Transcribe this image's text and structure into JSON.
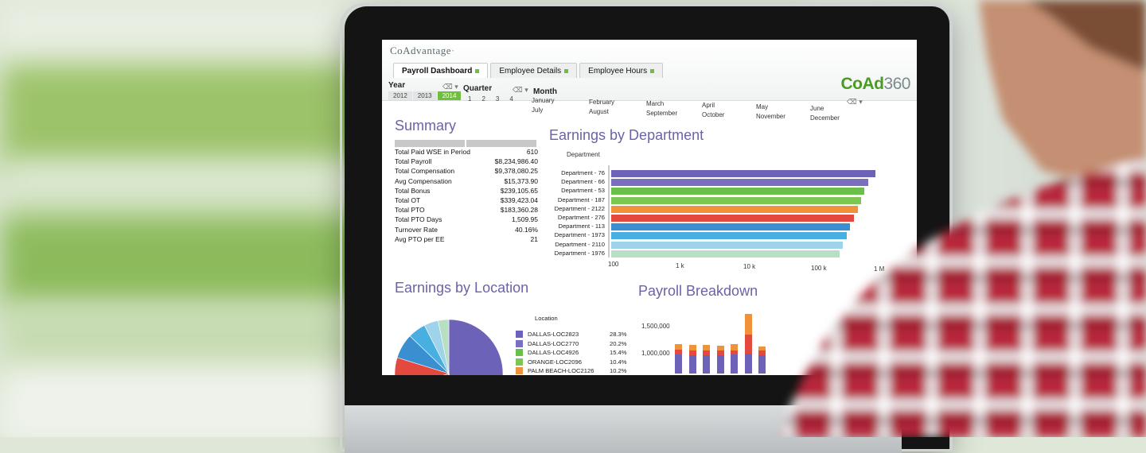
{
  "app": {
    "logo_text": "CoAdvantage",
    "brand_main": "CoAd",
    "brand_num": "360"
  },
  "tabs": [
    {
      "label": "Payroll Dashboard",
      "active": true
    },
    {
      "label": "Employee Details",
      "active": false
    },
    {
      "label": "Employee Hours",
      "active": false
    }
  ],
  "filters": {
    "year": {
      "title": "Year",
      "options": [
        "2012",
        "2013",
        "2014"
      ],
      "selected": "2014"
    },
    "quarter": {
      "title": "Quarter",
      "options": [
        "1",
        "2",
        "3",
        "4"
      ]
    },
    "month": {
      "title": "Month",
      "options": [
        "January",
        "February",
        "March",
        "April",
        "May",
        "June",
        "July",
        "August",
        "September",
        "October",
        "November",
        "December"
      ]
    }
  },
  "summary": {
    "title": "Summary",
    "rows": [
      {
        "label": "Total Paid WSE in Period",
        "value": "610"
      },
      {
        "label": "Total Payroll",
        "value": "$8,234,986.40"
      },
      {
        "label": "Total Compensation",
        "value": "$9,378,080.25"
      },
      {
        "label": "Avg Compensation",
        "value": "$15,373.90"
      },
      {
        "label": "Total Bonus",
        "value": "$239,105.65"
      },
      {
        "label": "Total OT",
        "value": "$339,423.04"
      },
      {
        "label": "Total PTO",
        "value": "$183,360.28"
      },
      {
        "label": "Total PTO Days",
        "value": "1,509.95"
      },
      {
        "label": "Turnover Rate",
        "value": "40.16%"
      },
      {
        "label": "Avg PTO per EE",
        "value": "21"
      }
    ]
  },
  "chart_data": [
    {
      "type": "bar",
      "orientation": "horizontal",
      "title": "Earnings by Department",
      "ylabel": "Department",
      "xscale": "log",
      "xticks": [
        "100",
        "1 k",
        "10 k",
        "100 k",
        "1 M"
      ],
      "xlim": [
        100,
        1000000
      ],
      "categories": [
        "Department - 76",
        "Department - 66",
        "Department - 53",
        "Department - 187",
        "Department - 2122",
        "Department - 276",
        "Department - 113",
        "Department - 1973",
        "Department - 2110",
        "Department - 1976"
      ],
      "values": [
        800000,
        650000,
        600000,
        560000,
        520000,
        480000,
        430000,
        400000,
        370000,
        340000
      ],
      "colors": [
        "#6c63b8",
        "#7a6fbf",
        "#6abf4b",
        "#7cc653",
        "#f0923a",
        "#e4493f",
        "#3a8fd0",
        "#49aee0",
        "#9fd3ea",
        "#b8dfc4"
      ]
    },
    {
      "type": "pie",
      "title": "Earnings by Location",
      "legend_title": "Location",
      "legend": "right",
      "labels": [
        "DALLAS-LOC2823",
        "DALLAS-LOC2770",
        "DALLAS-LOC4926",
        "ORANGE-LOC2096",
        "PALM BEACH-LOC2126"
      ],
      "values": [
        28.3,
        20.2,
        15.4,
        10.4,
        10.2
      ],
      "display": [
        "28.3%",
        "20.2%",
        "15.4%",
        "10.4%",
        "10.2%"
      ],
      "colors": [
        "#6c63b8",
        "#7a6fbf",
        "#6abf4b",
        "#7cc653",
        "#f0923a"
      ],
      "pie_colors": [
        "#6c63b8",
        "#6abf4b",
        "#f0923a",
        "#e4493f",
        "#3a8fd0",
        "#49aee0",
        "#9fd3ea",
        "#b8dfc4"
      ],
      "pie_values": [
        42,
        8,
        16,
        9,
        7,
        5,
        4,
        3
      ]
    },
    {
      "type": "bar",
      "stacked": true,
      "title": "Payroll Breakdown",
      "yticks": [
        "1,500,000",
        "1,000,000"
      ],
      "ylim": [
        0,
        1600000
      ],
      "columns": [
        [
          400000,
          100000,
          120000
        ],
        [
          380000,
          110000,
          110000
        ],
        [
          390000,
          100000,
          110000
        ],
        [
          380000,
          100000,
          110000
        ],
        [
          400000,
          90000,
          120000
        ],
        [
          420000,
          400000,
          430000
        ],
        [
          380000,
          100000,
          80000
        ]
      ],
      "colors": [
        "#6c63b8",
        "#e4493f",
        "#f0923a"
      ]
    }
  ]
}
